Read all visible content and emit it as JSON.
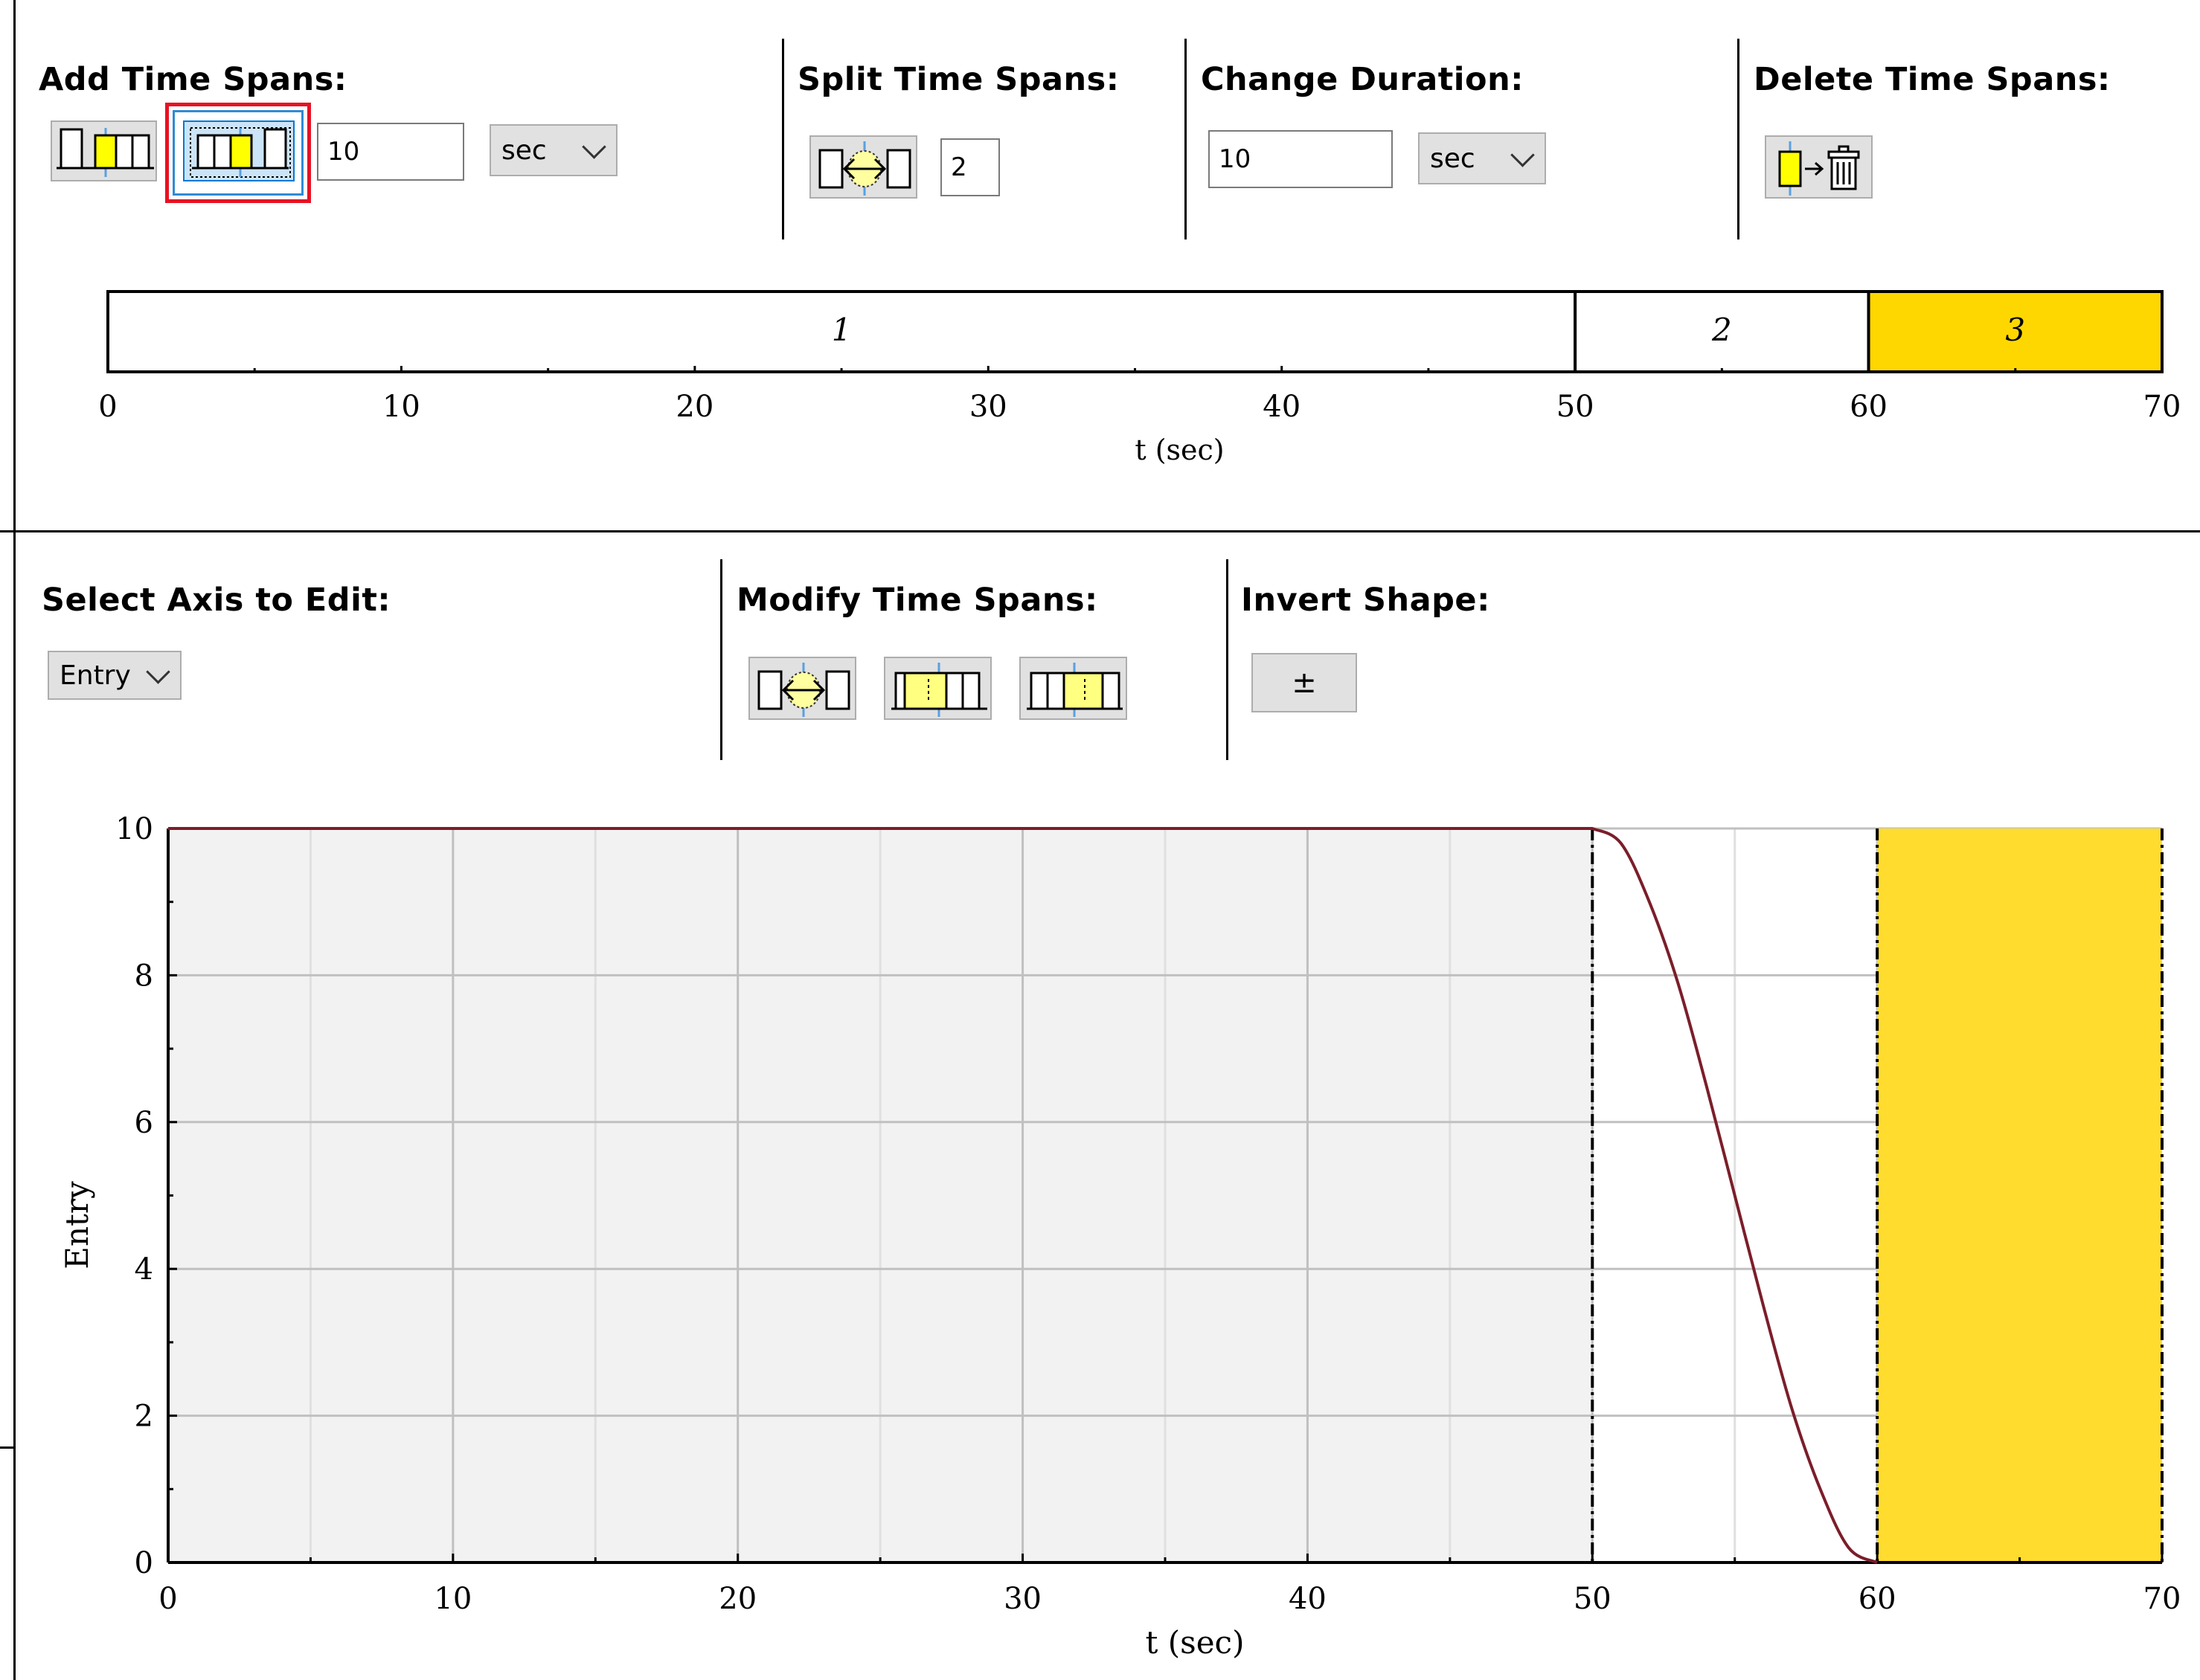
{
  "sections": {
    "add_time_spans": "Add Time Spans:",
    "split_time_spans": "Split Time Spans:",
    "change_duration": "Change Duration:",
    "delete_time_spans": "Delete Time Spans:",
    "select_axis": "Select Axis to Edit:",
    "modify_time_spans": "Modify Time Spans:",
    "invert_shape": "Invert Shape:"
  },
  "add": {
    "duration_value": "10",
    "unit": "sec"
  },
  "split": {
    "count_value": "2"
  },
  "change": {
    "duration_value": "10",
    "unit": "sec"
  },
  "axis_select": {
    "value": "Entry"
  },
  "invert": {
    "button_label": "±"
  },
  "colors": {
    "accent_yellow": "#ffd700",
    "highlight_red": "#e81123",
    "curve": "#7b1e2a",
    "span_fill": "#f2f2f2"
  },
  "timeline": {
    "xlabel": "t (sec)",
    "ticks": [
      "0",
      "10",
      "20",
      "30",
      "40",
      "50",
      "60",
      "70"
    ],
    "spans": [
      {
        "label": "1",
        "start": 0,
        "end": 50,
        "selected": false
      },
      {
        "label": "2",
        "start": 50,
        "end": 60,
        "selected": false
      },
      {
        "label": "3",
        "start": 60,
        "end": 70,
        "selected": true
      }
    ],
    "xlim": [
      0,
      70
    ]
  },
  "chart_data": {
    "type": "line",
    "xlabel": "t (sec)",
    "ylabel": "Entry",
    "xlim": [
      0,
      70
    ],
    "ylim": [
      0,
      10
    ],
    "x_ticks": [
      "0",
      "10",
      "20",
      "30",
      "40",
      "50",
      "60",
      "70"
    ],
    "y_ticks": [
      "0",
      "2",
      "4",
      "6",
      "8",
      "10"
    ],
    "grid": true,
    "series": [
      {
        "x": [
          0,
          50,
          51,
          52,
          53,
          54,
          55,
          56,
          57,
          58,
          59,
          60
        ],
        "y": [
          10,
          10,
          9.8,
          9.0,
          7.9,
          6.5,
          5.0,
          3.5,
          2.1,
          1.0,
          0.2,
          0
        ]
      }
    ],
    "spans": [
      {
        "start": 0,
        "end": 50,
        "fill": "#f2f2f2"
      },
      {
        "start": 60,
        "end": 70,
        "fill": "#ffdc2e",
        "selected": true
      }
    ]
  }
}
